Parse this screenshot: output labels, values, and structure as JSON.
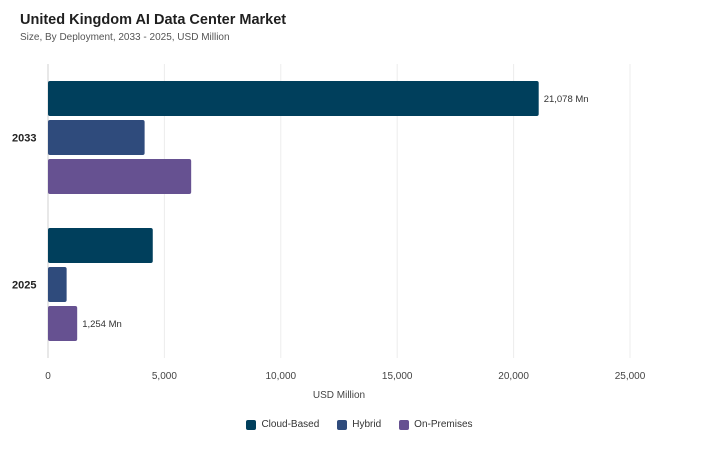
{
  "chart_data": {
    "type": "bar",
    "orientation": "horizontal",
    "title": "United Kingdom AI Data Center Market",
    "subtitle": "Size, By Deployment, 2033 - 2025, USD Million",
    "categories": [
      "2033",
      "2025"
    ],
    "series": [
      {
        "name": "Cloud-Based",
        "color": "#003f5c",
        "values": [
          21078,
          4500
        ]
      },
      {
        "name": "Hybrid",
        "color": "#2f4b7c",
        "values": [
          4150,
          800
        ]
      },
      {
        "name": "On-Premises",
        "color": "#665191",
        "values": [
          6150,
          1254
        ]
      }
    ],
    "data_labels": [
      {
        "category": "2033",
        "series": "Cloud-Based",
        "text": "21,078 Mn"
      },
      {
        "category": "2025",
        "series": "On-Premises",
        "text": "1,254 Mn"
      }
    ],
    "xlabel": "USD Million",
    "ylabel": "",
    "xlim": [
      0,
      25000
    ],
    "xticks": [
      0,
      5000,
      10000,
      15000,
      20000,
      25000
    ],
    "xtick_labels": [
      "0",
      "5,000",
      "10,000",
      "15,000",
      "20,000",
      "25,000"
    ],
    "grid": true,
    "legend_position": "bottom"
  }
}
